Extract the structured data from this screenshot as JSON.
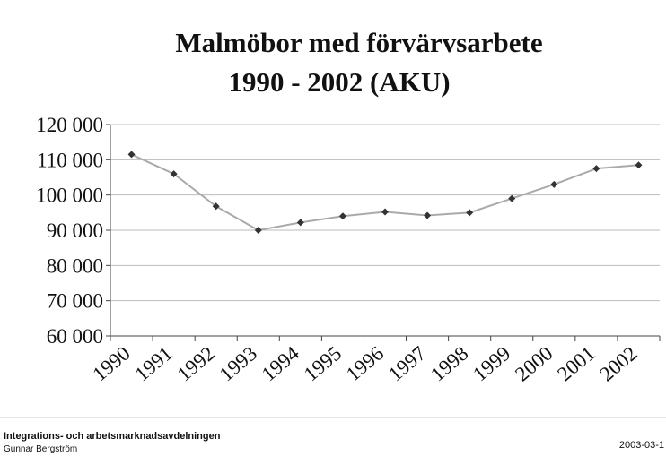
{
  "chart_data": {
    "type": "line",
    "title": [
      "Malmöbor med förvärvsarbete",
      "1990 - 2002 (AKU)"
    ],
    "categories": [
      "1990",
      "1991",
      "1992",
      "1993",
      "1994",
      "1995",
      "1996",
      "1997",
      "1998",
      "1999",
      "2000",
      "2001",
      "2002"
    ],
    "series": [
      {
        "color": "#aaaaaa",
        "marker_color": "#333333",
        "values": [
          111500,
          106000,
          96800,
          90000,
          92200,
          94000,
          95200,
          94200,
          95000,
          99000,
          103000,
          107500,
          108500
        ]
      }
    ],
    "ylim": [
      60000,
      120000
    ],
    "yticks": [
      {
        "value": 60000,
        "label": "60 000"
      },
      {
        "value": 70000,
        "label": "70 000"
      },
      {
        "value": 80000,
        "label": "80 000"
      },
      {
        "value": 90000,
        "label": "90 000"
      },
      {
        "value": 100000,
        "label": "100 000"
      },
      {
        "value": 110000,
        "label": "110 000"
      },
      {
        "value": 120000,
        "label": "120 000"
      }
    ],
    "grid": true
  },
  "footer": {
    "organization": "Integrations- och arbetsmarknadsavdelningen",
    "author": "Gunnar Bergström",
    "date": "2003-03-1"
  }
}
